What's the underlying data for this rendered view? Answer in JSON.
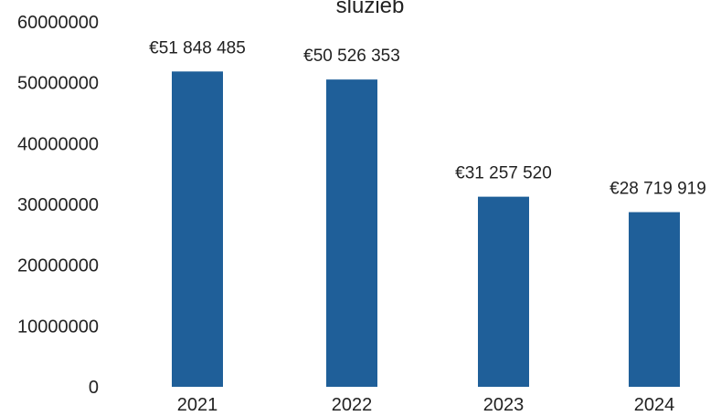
{
  "chart_data": {
    "type": "bar",
    "title": "služieb",
    "xlabel": "",
    "ylabel": "",
    "categories": [
      "2021",
      "2022",
      "2023",
      "2024"
    ],
    "values": [
      51848485,
      50526353,
      31257520,
      28719919
    ],
    "data_labels": [
      "€51 848 485",
      "€50 526 353",
      "€31 257 520",
      "€28 719 919"
    ],
    "y_ticks": [
      0,
      10000000,
      20000000,
      30000000,
      40000000,
      50000000,
      60000000
    ],
    "y_tick_labels": [
      "0",
      "10000000",
      "20000000",
      "30000000",
      "40000000",
      "50000000",
      "60000000"
    ],
    "ylim": [
      0,
      60000000
    ],
    "grid": false,
    "legend": "none",
    "colors": {
      "bar": "#1f5f99",
      "text": "#222222"
    }
  }
}
